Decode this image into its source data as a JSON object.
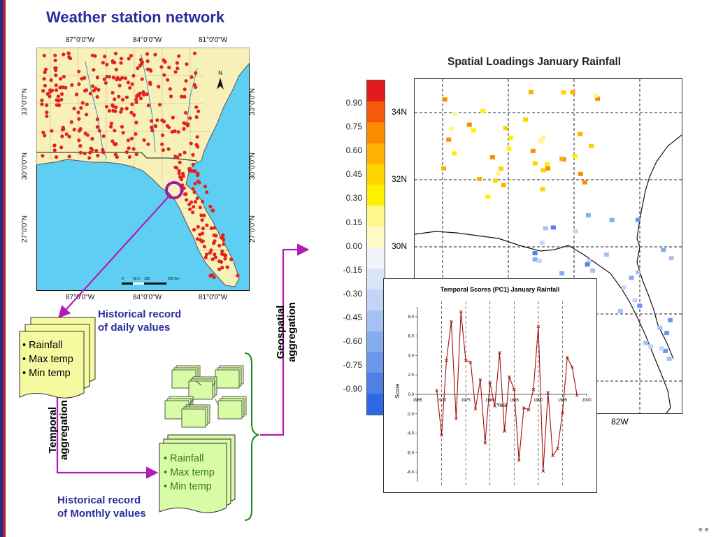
{
  "slide": {
    "title": "Weather station network",
    "page_number": "⊕ ⊕"
  },
  "map": {
    "top_lon_labels": [
      "87°0'0\"W",
      "84°0'0\"W",
      "81°0'0\"W"
    ],
    "bottom_lon_labels": [
      "87°0'0\"W",
      "84°0'0\"W",
      "81°0'0\"W"
    ],
    "lat_labels": [
      "33°0'0\"N",
      "30°0'0\"N",
      "27°0'0\"N"
    ],
    "north_label": "N",
    "scale_labels": [
      "0",
      "62.5",
      "125",
      "250 km"
    ],
    "colors": {
      "water": "#5ecff3",
      "land": "#f7f0b8",
      "station": "#e0241c",
      "highlight": "#a01aa0"
    }
  },
  "flow": {
    "daily_caption": [
      "Historical record",
      "of daily values"
    ],
    "daily_items": [
      "• Rainfall",
      "• Max temp",
      "• Min temp"
    ],
    "temporal_label": [
      "Temporal",
      "aggregation"
    ],
    "monthly_items": [
      "• Rainfall",
      "• Max temp",
      "• Min temp"
    ],
    "monthly_caption": [
      "Historical record",
      "of Monthly values"
    ],
    "geospatial_label": [
      "Geospatial",
      "aggregation"
    ],
    "doc_fill": "#f5f9a0",
    "monthly_fill": "#d8fba6",
    "arrow_color": "#b41ab4",
    "brace_color": "#1a8a1a"
  },
  "spatial": {
    "title": "Spatial Loadings January Rainfall",
    "colorbar_ticks": [
      "0.90",
      "0.75",
      "0.60",
      "0.45",
      "0.30",
      "0.15",
      "0.00",
      "-0.15",
      "-0.30",
      "-0.45",
      "-0.60",
      "-0.75",
      "-0.90"
    ],
    "colorbar_colors": [
      "#e31a1c",
      "#f45a0a",
      "#fb8c00",
      "#fdb100",
      "#fed400",
      "#fef000",
      "#fff78a",
      "#fefbc9",
      "#f2f4fb",
      "#dbe5f8",
      "#c3d5f6",
      "#a5c1f2",
      "#86abee",
      "#6b97ec",
      "#4f80e8",
      "#2d68e5"
    ],
    "lat_labels": [
      "34N",
      "32N",
      "30N"
    ],
    "lon_label": "82W"
  },
  "chart_data": {
    "type": "line",
    "title": "Temporal Scores (PC1) January Rainfall",
    "xlabel": "Year",
    "ylabel": "Score",
    "xlim": [
      1965,
      2000
    ],
    "ylim": [
      -9,
      9
    ],
    "xticks": [
      "1965",
      "1970",
      "1975",
      "1980",
      "1985",
      "1990",
      "1995",
      "2000"
    ],
    "yticks": [
      "8.0",
      "6.0",
      "4.0",
      "2.0",
      "0.0",
      "-2.0",
      "-4.0",
      "-6.0",
      "-8.0"
    ],
    "series": [
      {
        "x": [
          1969,
          1970,
          1971,
          1972,
          1973,
          1974,
          1975,
          1976,
          1977,
          1978,
          1979,
          1980,
          1981,
          1982,
          1983,
          1984,
          1985,
          1986,
          1987,
          1988,
          1989,
          1990,
          1991,
          1992,
          1993,
          1994,
          1995,
          1996,
          1997,
          1998
        ],
        "values": [
          0.4,
          -4.2,
          3.5,
          7.5,
          -2.5,
          8.5,
          3.5,
          3.3,
          -1.5,
          1.5,
          -5.0,
          1.2,
          -1.2,
          4.3,
          -3.8,
          1.8,
          0.5,
          -6.8,
          -1.4,
          -1.6,
          0.5,
          7.0,
          -7.9,
          0.2,
          -6.3,
          -5.6,
          -1.9,
          3.8,
          2.8,
          -0.1
        ],
        "color": "#a01010"
      }
    ],
    "grid_x": [
      1970,
      1980,
      1990
    ],
    "grid": "dashed vertical"
  }
}
